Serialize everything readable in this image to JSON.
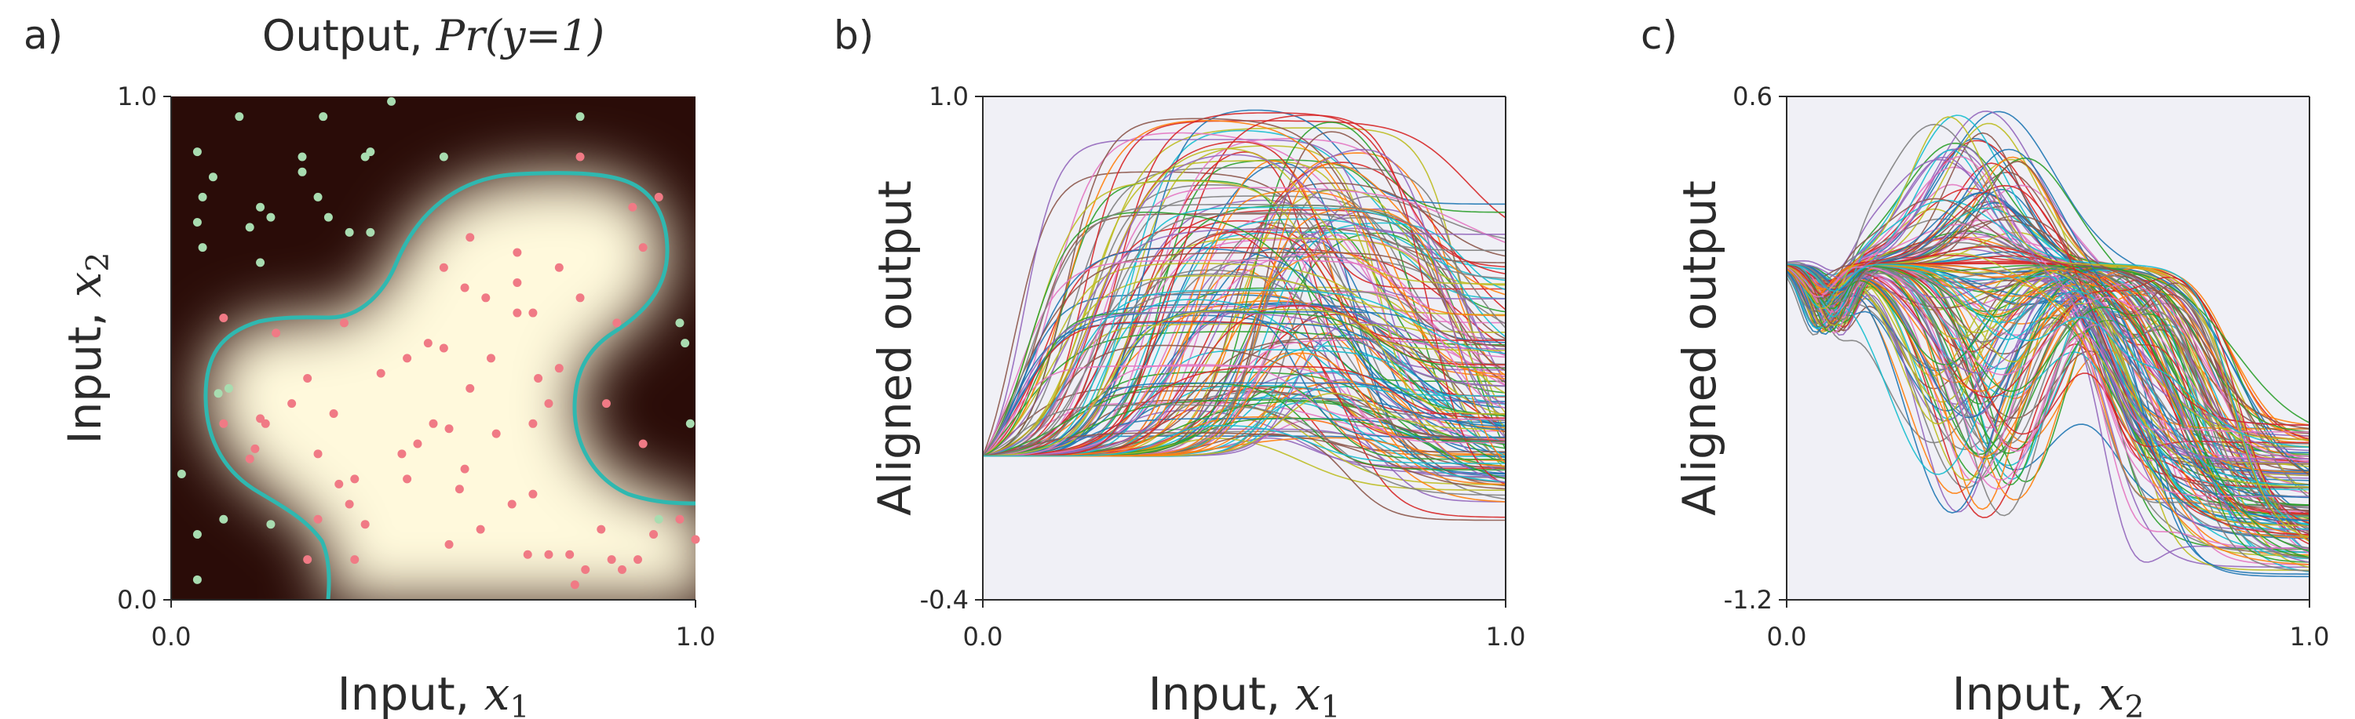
{
  "panels": {
    "a": {
      "letter": "a)",
      "title_prefix": "Output, ",
      "title_math": "Pr(y=1)",
      "xlabel": "Input, ",
      "xvar": "x",
      "xsub": "1",
      "ylabel": "Input,  ",
      "yvar": "x",
      "ysub": "2"
    },
    "b": {
      "letter": "b)",
      "xlabel": "Input, ",
      "xvar": "x",
      "xsub": "1",
      "ylabel": "Aligned output"
    },
    "c": {
      "letter": "c)",
      "xlabel": "Input, ",
      "xvar": "x",
      "xsub": "2",
      "ylabel": "Aligned output"
    }
  },
  "colors": {
    "dark_background": "#2a0c08",
    "light_region": "#fff9dc",
    "boundary": "#2fb8b0",
    "positive_points": "#f07a85",
    "negative_points": "#a8dcb0",
    "plot_background": "#f0f0f6"
  },
  "chart_data": [
    {
      "type": "heatmap",
      "title": "Output, Pr(y=1)",
      "xlabel": "Input, x1",
      "ylabel": "Input, x2",
      "xlim": [
        0.0,
        1.0
      ],
      "ylim": [
        0.0,
        1.0
      ],
      "xticks": [
        "0.0",
        "1.0"
      ],
      "yticks": [
        "0.0",
        "1.0"
      ],
      "positive_points": [
        [
          0.78,
          0.88
        ],
        [
          0.88,
          0.78
        ],
        [
          0.93,
          0.8
        ],
        [
          0.57,
          0.72
        ],
        [
          0.66,
          0.69
        ],
        [
          0.74,
          0.66
        ],
        [
          0.9,
          0.7
        ],
        [
          0.52,
          0.66
        ],
        [
          0.66,
          0.63
        ],
        [
          0.56,
          0.62
        ],
        [
          0.6,
          0.6
        ],
        [
          0.66,
          0.57
        ],
        [
          0.69,
          0.57
        ],
        [
          0.78,
          0.6
        ],
        [
          0.85,
          0.55
        ],
        [
          0.1,
          0.56
        ],
        [
          0.2,
          0.53
        ],
        [
          0.33,
          0.55
        ],
        [
          0.45,
          0.48
        ],
        [
          0.49,
          0.51
        ],
        [
          0.52,
          0.5
        ],
        [
          0.61,
          0.48
        ],
        [
          0.74,
          0.46
        ],
        [
          0.26,
          0.44
        ],
        [
          0.4,
          0.45
        ],
        [
          0.57,
          0.42
        ],
        [
          0.7,
          0.44
        ],
        [
          0.72,
          0.39
        ],
        [
          0.83,
          0.39
        ],
        [
          0.17,
          0.36
        ],
        [
          0.23,
          0.39
        ],
        [
          0.1,
          0.35
        ],
        [
          0.18,
          0.35
        ],
        [
          0.31,
          0.37
        ],
        [
          0.5,
          0.35
        ],
        [
          0.53,
          0.34
        ],
        [
          0.62,
          0.33
        ],
        [
          0.69,
          0.35
        ],
        [
          0.16,
          0.3
        ],
        [
          0.15,
          0.28
        ],
        [
          0.28,
          0.29
        ],
        [
          0.44,
          0.29
        ],
        [
          0.47,
          0.31
        ],
        [
          0.56,
          0.26
        ],
        [
          0.35,
          0.24
        ],
        [
          0.45,
          0.24
        ],
        [
          0.55,
          0.22
        ],
        [
          0.65,
          0.19
        ],
        [
          0.69,
          0.21
        ],
        [
          0.32,
          0.23
        ],
        [
          0.34,
          0.19
        ],
        [
          0.28,
          0.16
        ],
        [
          0.37,
          0.15
        ],
        [
          0.82,
          0.14
        ],
        [
          0.92,
          0.13
        ],
        [
          0.59,
          0.14
        ],
        [
          0.76,
          0.09
        ],
        [
          0.68,
          0.09
        ],
        [
          0.72,
          0.09
        ],
        [
          0.84,
          0.08
        ],
        [
          0.86,
          0.06
        ],
        [
          0.26,
          0.08
        ],
        [
          0.35,
          0.08
        ],
        [
          0.53,
          0.11
        ],
        [
          0.79,
          0.06
        ],
        [
          0.89,
          0.08
        ],
        [
          0.77,
          0.03
        ],
        [
          1.0,
          0.12
        ],
        [
          0.9,
          0.31
        ],
        [
          0.97,
          0.16
        ]
      ],
      "negative_points": [
        [
          0.13,
          0.96
        ],
        [
          0.29,
          0.96
        ],
        [
          0.42,
          0.99
        ],
        [
          0.78,
          0.96
        ],
        [
          0.05,
          0.89
        ],
        [
          0.25,
          0.88
        ],
        [
          0.37,
          0.88
        ],
        [
          0.38,
          0.89
        ],
        [
          0.52,
          0.88
        ],
        [
          0.08,
          0.84
        ],
        [
          0.25,
          0.85
        ],
        [
          0.06,
          0.8
        ],
        [
          0.17,
          0.78
        ],
        [
          0.28,
          0.8
        ],
        [
          0.3,
          0.76
        ],
        [
          0.05,
          0.75
        ],
        [
          0.19,
          0.76
        ],
        [
          0.15,
          0.74
        ],
        [
          0.34,
          0.73
        ],
        [
          0.38,
          0.73
        ],
        [
          0.06,
          0.7
        ],
        [
          0.17,
          0.67
        ],
        [
          0.09,
          0.41
        ],
        [
          0.11,
          0.42
        ],
        [
          0.02,
          0.25
        ],
        [
          0.97,
          0.55
        ],
        [
          0.98,
          0.51
        ],
        [
          0.99,
          0.35
        ],
        [
          0.93,
          0.16
        ],
        [
          0.05,
          0.13
        ],
        [
          0.1,
          0.16
        ],
        [
          0.19,
          0.15
        ],
        [
          0.05,
          0.04
        ]
      ],
      "boundary": "Pr(y=1) = 0.5 contour"
    },
    {
      "type": "line",
      "xlabel": "Input, x1",
      "ylabel": "Aligned output",
      "xlim": [
        0.0,
        1.0
      ],
      "ylim": [
        -0.4,
        1.0
      ],
      "xticks": [
        "0.0",
        "1.0"
      ],
      "yticks": [
        "-0.4",
        "1.0"
      ],
      "series_description": "many colored line samples",
      "series_count": 160
    },
    {
      "type": "line",
      "xlabel": "Input, x2",
      "ylabel": "Aligned output",
      "xlim": [
        0.0,
        1.0
      ],
      "ylim": [
        -1.2,
        0.6
      ],
      "xticks": [
        "0.0",
        "1.0"
      ],
      "yticks": [
        "-1.2",
        "0.6"
      ],
      "series_description": "many colored line samples",
      "series_count": 160
    }
  ]
}
